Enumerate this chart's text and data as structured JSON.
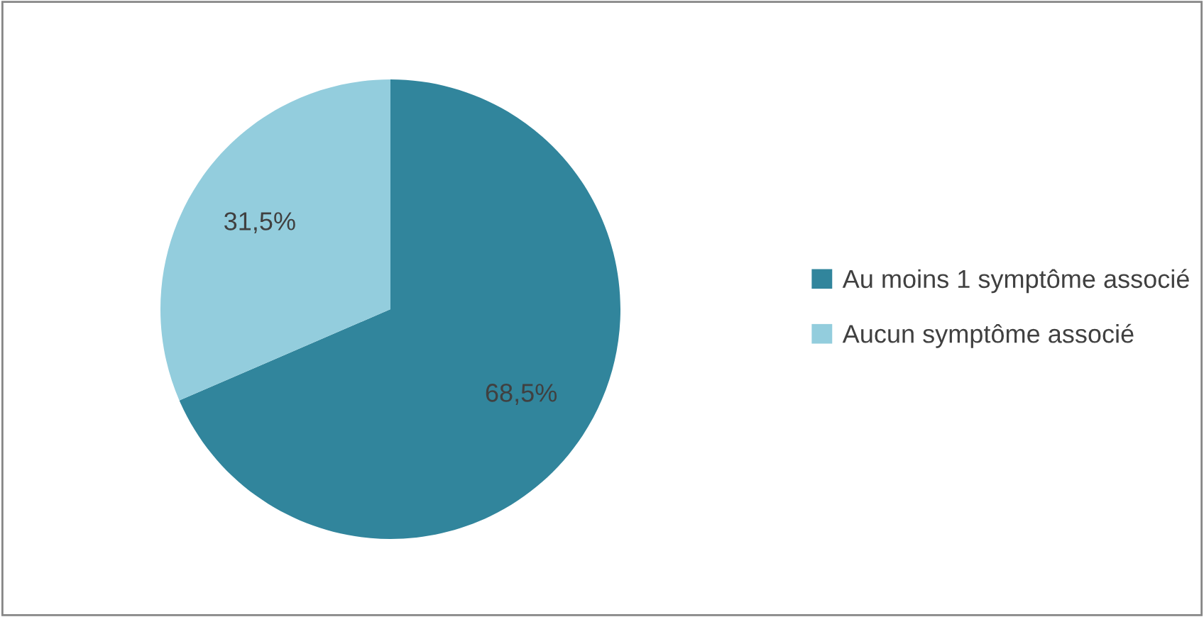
{
  "chart_data": {
    "type": "pie",
    "categories": [
      "Au moins 1 symptôme associé",
      "Aucun symptôme associé"
    ],
    "values": [
      68.5,
      31.5
    ],
    "colors": [
      "#31859c",
      "#93cddd"
    ],
    "value_labels": [
      "68,5%",
      "31,5%"
    ],
    "legend": "right"
  }
}
